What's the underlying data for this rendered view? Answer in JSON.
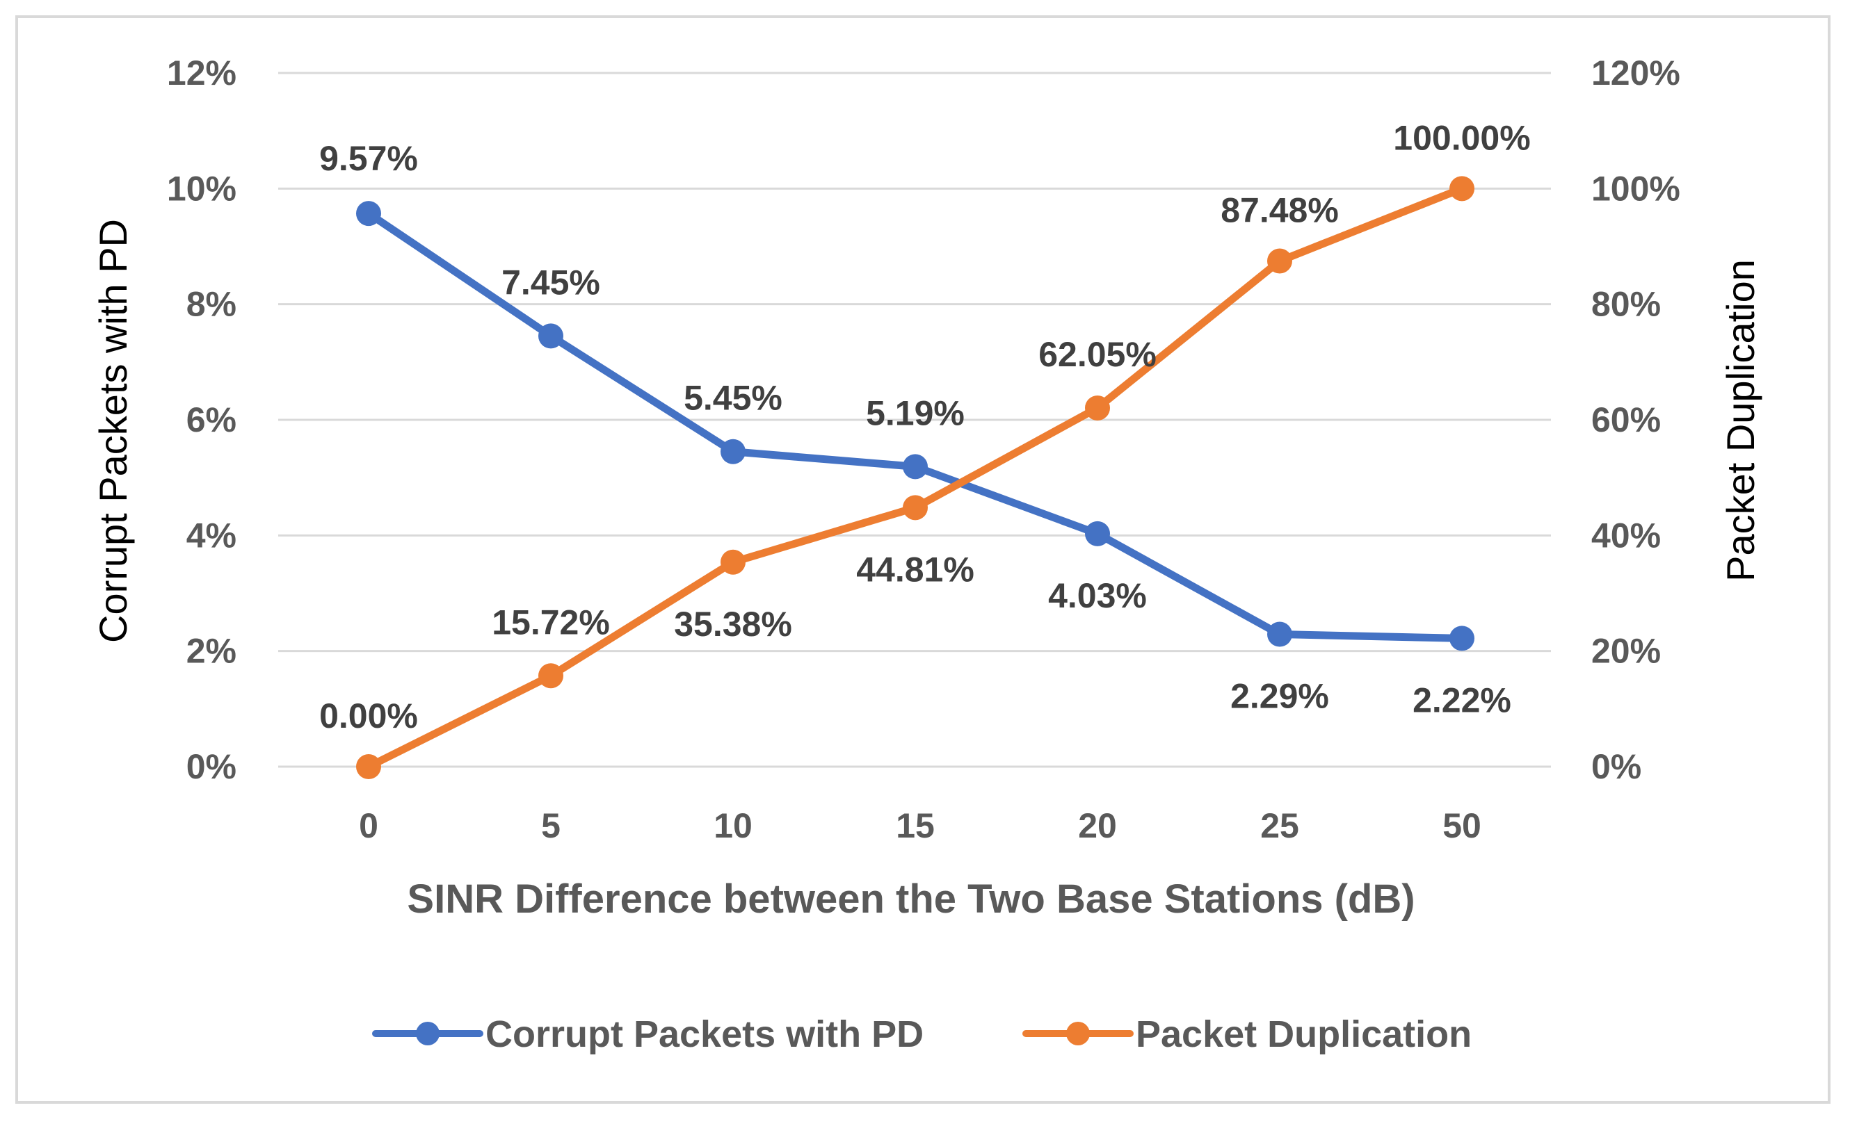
{
  "chart_data": {
    "type": "line",
    "title": "",
    "xlabel": "SINR Difference between the Two Base Stations (dB)",
    "ylabel": "Corrupt Packets with PD",
    "y2label": "Packet Duplication",
    "categories": [
      "0",
      "5",
      "10",
      "15",
      "20",
      "25",
      "50"
    ],
    "ylim": [
      0,
      12
    ],
    "y2lim": [
      0,
      120
    ],
    "yticks": [
      "0%",
      "2%",
      "4%",
      "6%",
      "8%",
      "10%",
      "12%"
    ],
    "y2ticks": [
      "0%",
      "20%",
      "40%",
      "60%",
      "80%",
      "100%",
      "120%"
    ],
    "grid": true,
    "legend_position": "bottom",
    "series": [
      {
        "name": "Corrupt Packets with PD",
        "axis": "left",
        "color": "#4472c4",
        "values": [
          9.57,
          7.45,
          5.45,
          5.19,
          4.03,
          2.29,
          2.22
        ],
        "labels": [
          "9.57%",
          "7.45%",
          "5.45%",
          "5.19%",
          "4.03%",
          "2.29%",
          "2.22%"
        ]
      },
      {
        "name": "Packet Duplication",
        "axis": "right",
        "color": "#ed7d31",
        "values": [
          0.0,
          15.72,
          35.38,
          44.81,
          62.05,
          87.48,
          100.0
        ],
        "labels": [
          "0.00%",
          "15.72%",
          "35.38%",
          "44.81%",
          "62.05%",
          "87.48%",
          "100.00%"
        ]
      }
    ]
  }
}
